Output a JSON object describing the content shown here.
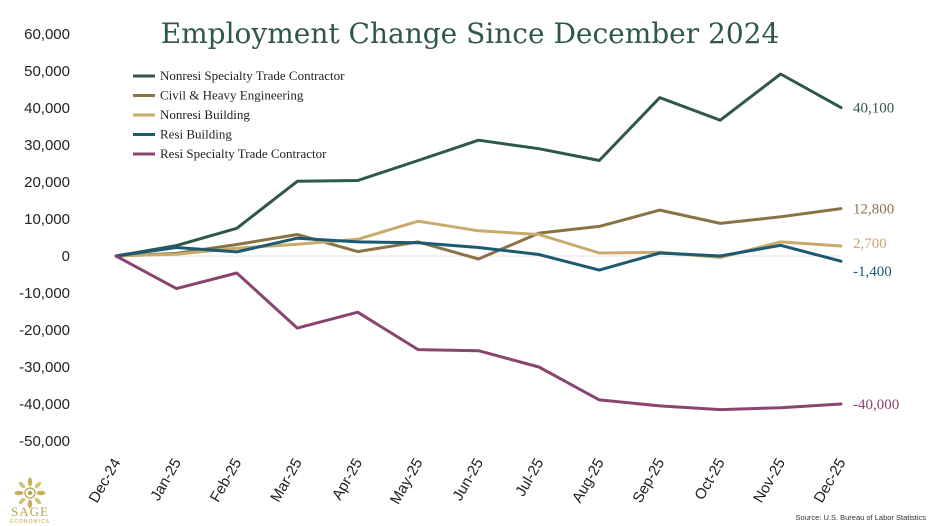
{
  "chart_data": {
    "type": "line",
    "title": "Employment Change Since December 2024",
    "xlabel": "",
    "ylabel": "",
    "categories": [
      "Dec-24",
      "Jan-25",
      "Feb-25",
      "Mar-25",
      "Apr-25",
      "May-25",
      "Jun-25",
      "Jul-25",
      "Aug-25",
      "Sep-25",
      "Oct-25",
      "Nov-25",
      "Dec-25"
    ],
    "ylim": [
      -50000,
      60000
    ],
    "yticks": [
      {
        "value": 60000,
        "label": "60,000"
      },
      {
        "value": 50000,
        "label": "50,000"
      },
      {
        "value": 40000,
        "label": "40,000"
      },
      {
        "value": 30000,
        "label": "30,000"
      },
      {
        "value": 20000,
        "label": "20,000"
      },
      {
        "value": 10000,
        "label": "10,000"
      },
      {
        "value": 0,
        "label": "0"
      },
      {
        "value": -10000,
        "label": "-10,000"
      },
      {
        "value": -20000,
        "label": "-20,000"
      },
      {
        "value": -30000,
        "label": "-30,000"
      },
      {
        "value": -40000,
        "label": "-40,000"
      },
      {
        "value": -50000,
        "label": "-50,000"
      }
    ],
    "grid": false,
    "legend_position": "top-left",
    "series": [
      {
        "name": "Nonresi Specialty Trade Contractor",
        "color": "#2f5848",
        "end_label": "40,100",
        "values": [
          0,
          2800,
          7500,
          20200,
          20400,
          25800,
          31300,
          29000,
          25800,
          42800,
          36700,
          49200,
          40100
        ]
      },
      {
        "name": "Civil & Heavy Engineering",
        "color": "#8a7446",
        "end_label": "12,800",
        "values": [
          0,
          700,
          3100,
          5800,
          1200,
          3800,
          -800,
          6200,
          8000,
          12400,
          8800,
          10600,
          12800
        ]
      },
      {
        "name": "Nonresi Building",
        "color": "#c8aa6c",
        "end_label": "2,700",
        "values": [
          0,
          500,
          2100,
          3200,
          4500,
          9400,
          6800,
          5800,
          800,
          1000,
          -400,
          3800,
          2700
        ]
      },
      {
        "name": "Resi Building",
        "color": "#1c5a73",
        "end_label": "-1,400",
        "values": [
          0,
          2300,
          1100,
          4800,
          3800,
          3600,
          2300,
          400,
          -3800,
          800,
          0,
          2900,
          -1400
        ]
      },
      {
        "name": "Resi Specialty Trade Contractor",
        "color": "#8a4470",
        "end_label": "-40,000",
        "values": [
          0,
          -8800,
          -4600,
          -19500,
          -15200,
          -25300,
          -25600,
          -30000,
          -38900,
          -40500,
          -41500,
          -41000,
          -40000
        ]
      }
    ],
    "source": "Source: U.S. Bureau of Labor Statistics"
  },
  "branding": {
    "logo_name": "SAGE",
    "logo_sub": "ECONOMICS",
    "logo_color": "#b9a44c"
  }
}
